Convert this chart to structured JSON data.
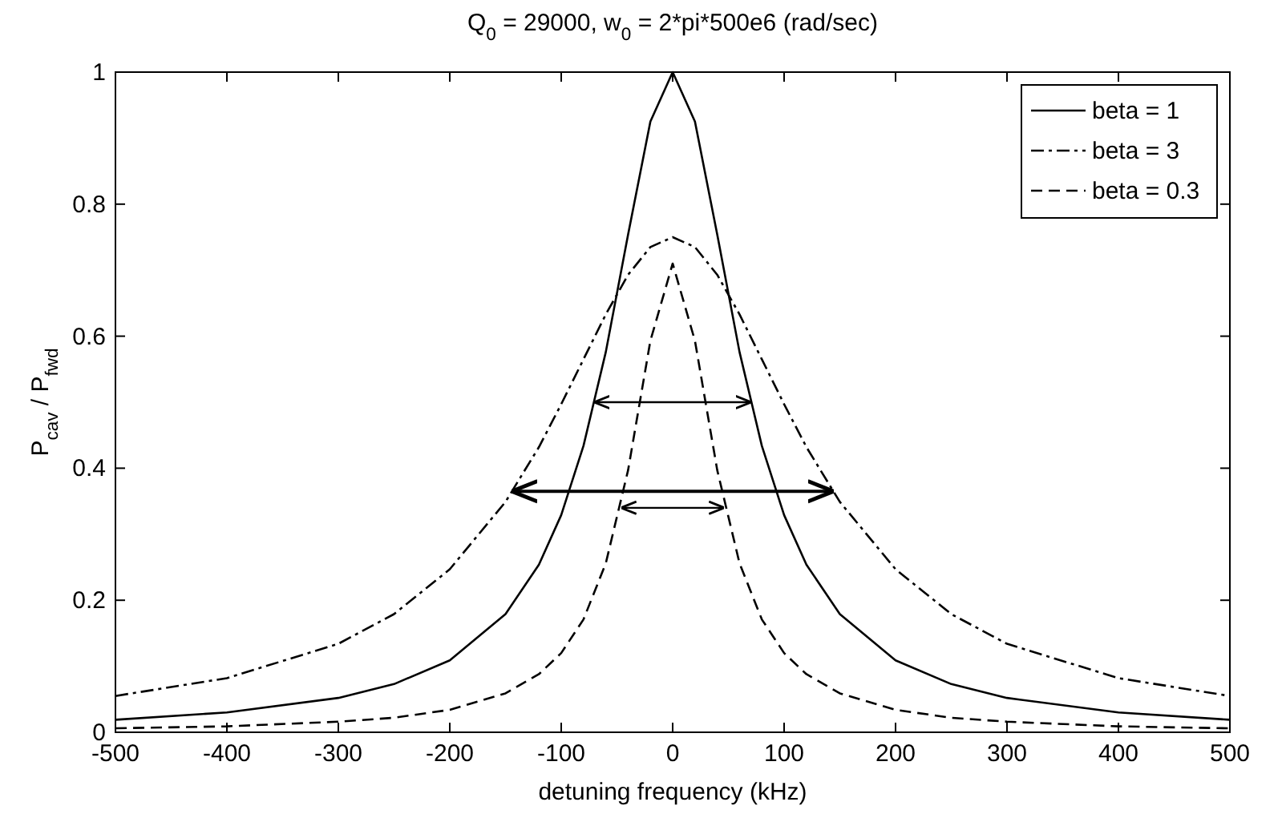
{
  "chart_data": {
    "type": "line",
    "title": "Q$_{0}$ = 29000, w$_{0}$ = 2*pi*500e6 (rad/sec)",
    "xlabel": "detuning frequency (kHz)",
    "ylabel": "P$_{cav}$ / P$_{fwd}$",
    "x": [
      -500,
      -400,
      -300,
      -250,
      -200,
      -150,
      -120,
      -100,
      -80,
      -60,
      -40,
      -20,
      0,
      20,
      40,
      60,
      80,
      100,
      120,
      150,
      200,
      250,
      300,
      400,
      500
    ],
    "series": [
      {
        "name": "beta = 1",
        "color": "#000000",
        "line_style": "solid",
        "values": [
          0.019,
          0.03,
          0.052,
          0.073,
          0.109,
          0.179,
          0.254,
          0.329,
          0.434,
          0.576,
          0.754,
          0.925,
          1.0,
          0.925,
          0.754,
          0.576,
          0.434,
          0.329,
          0.254,
          0.179,
          0.109,
          0.073,
          0.052,
          0.03,
          0.019
        ]
      },
      {
        "name": "beta = 3",
        "color": "#000000",
        "line_style": "dashdot",
        "values": [
          0.055,
          0.082,
          0.134,
          0.179,
          0.247,
          0.349,
          0.432,
          0.497,
          0.565,
          0.633,
          0.693,
          0.735,
          0.75,
          0.735,
          0.693,
          0.633,
          0.565,
          0.497,
          0.432,
          0.349,
          0.247,
          0.179,
          0.134,
          0.082,
          0.055
        ]
      },
      {
        "name": "beta = 0.3",
        "color": "#000000",
        "line_style": "dashed",
        "values": [
          0.006,
          0.009,
          0.016,
          0.022,
          0.034,
          0.059,
          0.088,
          0.12,
          0.171,
          0.256,
          0.397,
          0.593,
          0.71,
          0.593,
          0.397,
          0.256,
          0.171,
          0.12,
          0.088,
          0.059,
          0.034,
          0.022,
          0.016,
          0.009,
          0.006
        ]
      }
    ],
    "xlim": [
      -500,
      500
    ],
    "xticks": [
      -500,
      -400,
      -300,
      -200,
      -100,
      0,
      100,
      200,
      300,
      400,
      500
    ],
    "ylim": [
      0,
      1
    ],
    "yticks": [
      0,
      0.2,
      0.4,
      0.6,
      0.8,
      1
    ],
    "grid": false,
    "legend": "top right",
    "marker": "none"
  }
}
